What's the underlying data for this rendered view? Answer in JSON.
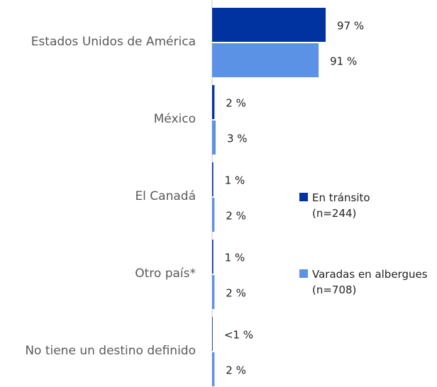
{
  "chart_data": {
    "type": "hbar",
    "categories": [
      "Estados Unidos de América",
      "México",
      "El Canadá",
      "Otro país*",
      "No tiene un destino definido"
    ],
    "series": [
      {
        "name": "En tránsito\n(n=244)",
        "color": "#0033a0",
        "values": [
          97,
          2,
          1,
          1,
          0.5
        ],
        "value_labels": [
          "97 %",
          "2 %",
          "1 %",
          "1 %",
          "<1 %"
        ]
      },
      {
        "name": "Varadas en albergues\n(n=708)",
        "color": "#5b92e5",
        "values": [
          91,
          3,
          2,
          2,
          2
        ],
        "value_labels": [
          "91 %",
          "3 %",
          "2 %",
          "2 %",
          "2 %"
        ]
      }
    ]
  }
}
